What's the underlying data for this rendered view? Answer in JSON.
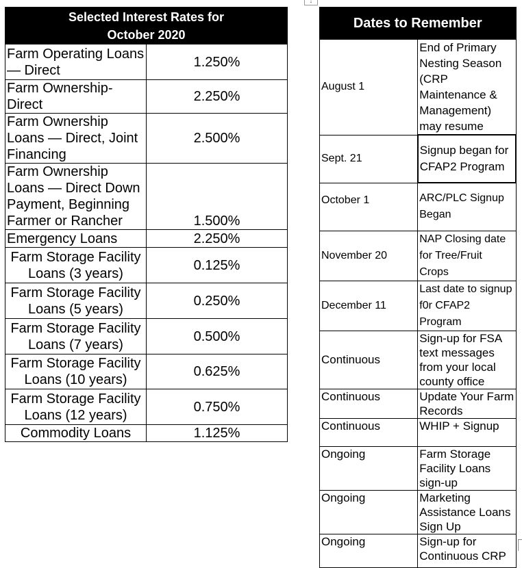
{
  "rates_table": {
    "title_line1": "Selected Interest Rates for",
    "title_line2": "October 2020",
    "rows": [
      {
        "name": "Farm Operating Loans — Direct",
        "rate": "1.250%"
      },
      {
        "name": "Farm Ownership-Direct",
        "rate": "2.250%"
      },
      {
        "name": "Farm Ownership Loans — Direct, Joint Financing",
        "rate": "2.500%"
      },
      {
        "name": "Farm Ownership Loans — Direct Down Payment, Beginning Farmer or Rancher",
        "rate": "1.500%"
      },
      {
        "name": "Emergency Loans",
        "rate": "2.250%"
      },
      {
        "name": "Farm Storage Facility Loans (3 years)",
        "rate": "0.125%"
      },
      {
        "name": "Farm Storage Facility Loans (5 years)",
        "rate": "0.250%"
      },
      {
        "name": "Farm Storage Facility Loans (7 years)",
        "rate": "0.500%"
      },
      {
        "name": "Farm Storage Facility Loans (10 years)",
        "rate": "0.625%"
      },
      {
        "name": "Farm Storage Facility Loans (12 years)",
        "rate": "0.750%"
      },
      {
        "name": "Commodity Loans",
        "rate": "1.125%"
      }
    ]
  },
  "dates_table": {
    "title": "Dates to Remember",
    "rows": [
      {
        "date": "August 1",
        "event": "End of Primary Nesting Season (CRP Maintenance & Management) may resume"
      },
      {
        "date": "Sept. 21",
        "event": "Signup began for CFAP2 Program"
      },
      {
        "date": "October 1",
        "event": "ARC/PLC Signup Began"
      },
      {
        "date": "November 20",
        "event": "NAP Closing date for Tree/Fruit Crops"
      },
      {
        "date": "December 11",
        "event": "Last date to signup f0r CFAP2 Program"
      },
      {
        "date": "Continuous",
        "event": "Sign-up for FSA text messages from your local county office"
      },
      {
        "date": "Continuous",
        "event": "Update Your Farm Records"
      },
      {
        "date": "Continuous",
        "event": "WHIP + Signup"
      },
      {
        "date": "Ongoing",
        "event": "Farm Storage Facility Loans sign-up"
      },
      {
        "date": "Ongoing",
        "event": "Marketing Assistance Loans Sign Up"
      },
      {
        "date": "Ongoing",
        "event": "Sign-up for Continuous CRP"
      }
    ]
  }
}
